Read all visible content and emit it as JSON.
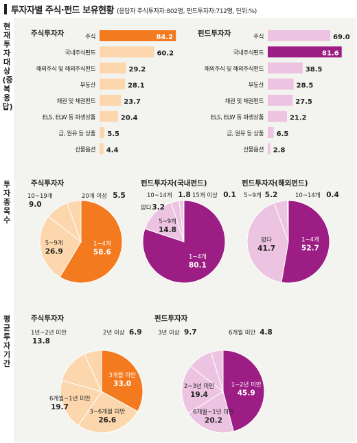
{
  "header": {
    "title": "투자자별 주식·펀드 보유현황",
    "subtitle": "(응답자 주식투자자:802명, 펀드투자자:712명, 단위:%)"
  },
  "side_labels": {
    "section1": "현재 투자대상(중복응답)",
    "section2": "투자 종목 수",
    "section3": "평균 투자기간"
  },
  "colors": {
    "stock_dark": "#f47a1f",
    "stock_light": "#fcd7ad",
    "fund_dark": "#9c1e85",
    "fund_light": "#ecc4e2",
    "panel_bg": "#f3f3ef"
  },
  "chart_data": [
    {
      "type": "bar",
      "title": "주식투자자",
      "categories": [
        "주식",
        "국내주식펀드",
        "해외주식 및 해외주식펀드",
        "부동산",
        "채권 및 채권펀드",
        "ELS, ELW 등 파생상품",
        "금, 원유 등 상품",
        "선물옵션"
      ],
      "values": [
        84.2,
        60.2,
        29.2,
        28.1,
        23.7,
        20.4,
        5.5,
        4.4
      ],
      "highlight_index": 0
    },
    {
      "type": "bar",
      "title": "펀드투자자",
      "categories": [
        "주식",
        "국내주식펀드",
        "해외주식 및 해외주식펀드",
        "부동산",
        "채권 및 채권펀드",
        "ELS, ELW 등 파생상품",
        "금, 원유 등 상품",
        "선물옵션"
      ],
      "values": [
        69.0,
        81.6,
        38.5,
        28.5,
        27.5,
        21.2,
        6.5,
        2.8
      ],
      "highlight_index": 1
    },
    {
      "type": "pie",
      "title": "주식투자자",
      "slices": [
        {
          "label": "1~4개",
          "value": 58.6
        },
        {
          "label": "5~9개",
          "value": 26.9
        },
        {
          "label": "10~19개",
          "value": 9.0
        },
        {
          "label": "20개 이상",
          "value": 5.5
        }
      ]
    },
    {
      "type": "pie",
      "title": "펀드투자자(국내펀드)",
      "slices": [
        {
          "label": "1~4개",
          "value": 80.1
        },
        {
          "label": "5~9개",
          "value": 14.8
        },
        {
          "label": "없다",
          "value": 3.2
        },
        {
          "label": "10~14개",
          "value": 1.8
        },
        {
          "label": "15개 이상",
          "value": 0.1
        }
      ]
    },
    {
      "type": "pie",
      "title": "펀드투자자(해외펀드)",
      "slices": [
        {
          "label": "1~4개",
          "value": 52.7
        },
        {
          "label": "없다",
          "value": 41.7
        },
        {
          "label": "5~9개",
          "value": 5.2
        },
        {
          "label": "10~14개",
          "value": 0.4
        }
      ]
    },
    {
      "type": "pie",
      "title": "주식투자자",
      "slices": [
        {
          "label": "3개월 미만",
          "value": 33.0
        },
        {
          "label": "3~6개월 미만",
          "value": 26.6
        },
        {
          "label": "6개월~1년 미만",
          "value": 19.7
        },
        {
          "label": "1년~2년 미만",
          "value": 13.8
        },
        {
          "label": "2년 이상",
          "value": 6.9
        }
      ]
    },
    {
      "type": "pie",
      "title": "펀드투자자",
      "slices": [
        {
          "label": "1~2년 미만",
          "value": 45.9
        },
        {
          "label": "6개월~1년 미만",
          "value": 20.2
        },
        {
          "label": "2~3년 미만",
          "value": 19.4
        },
        {
          "label": "3년 이상",
          "value": 9.7
        },
        {
          "label": "6개월 미만",
          "value": 4.8
        }
      ]
    }
  ]
}
